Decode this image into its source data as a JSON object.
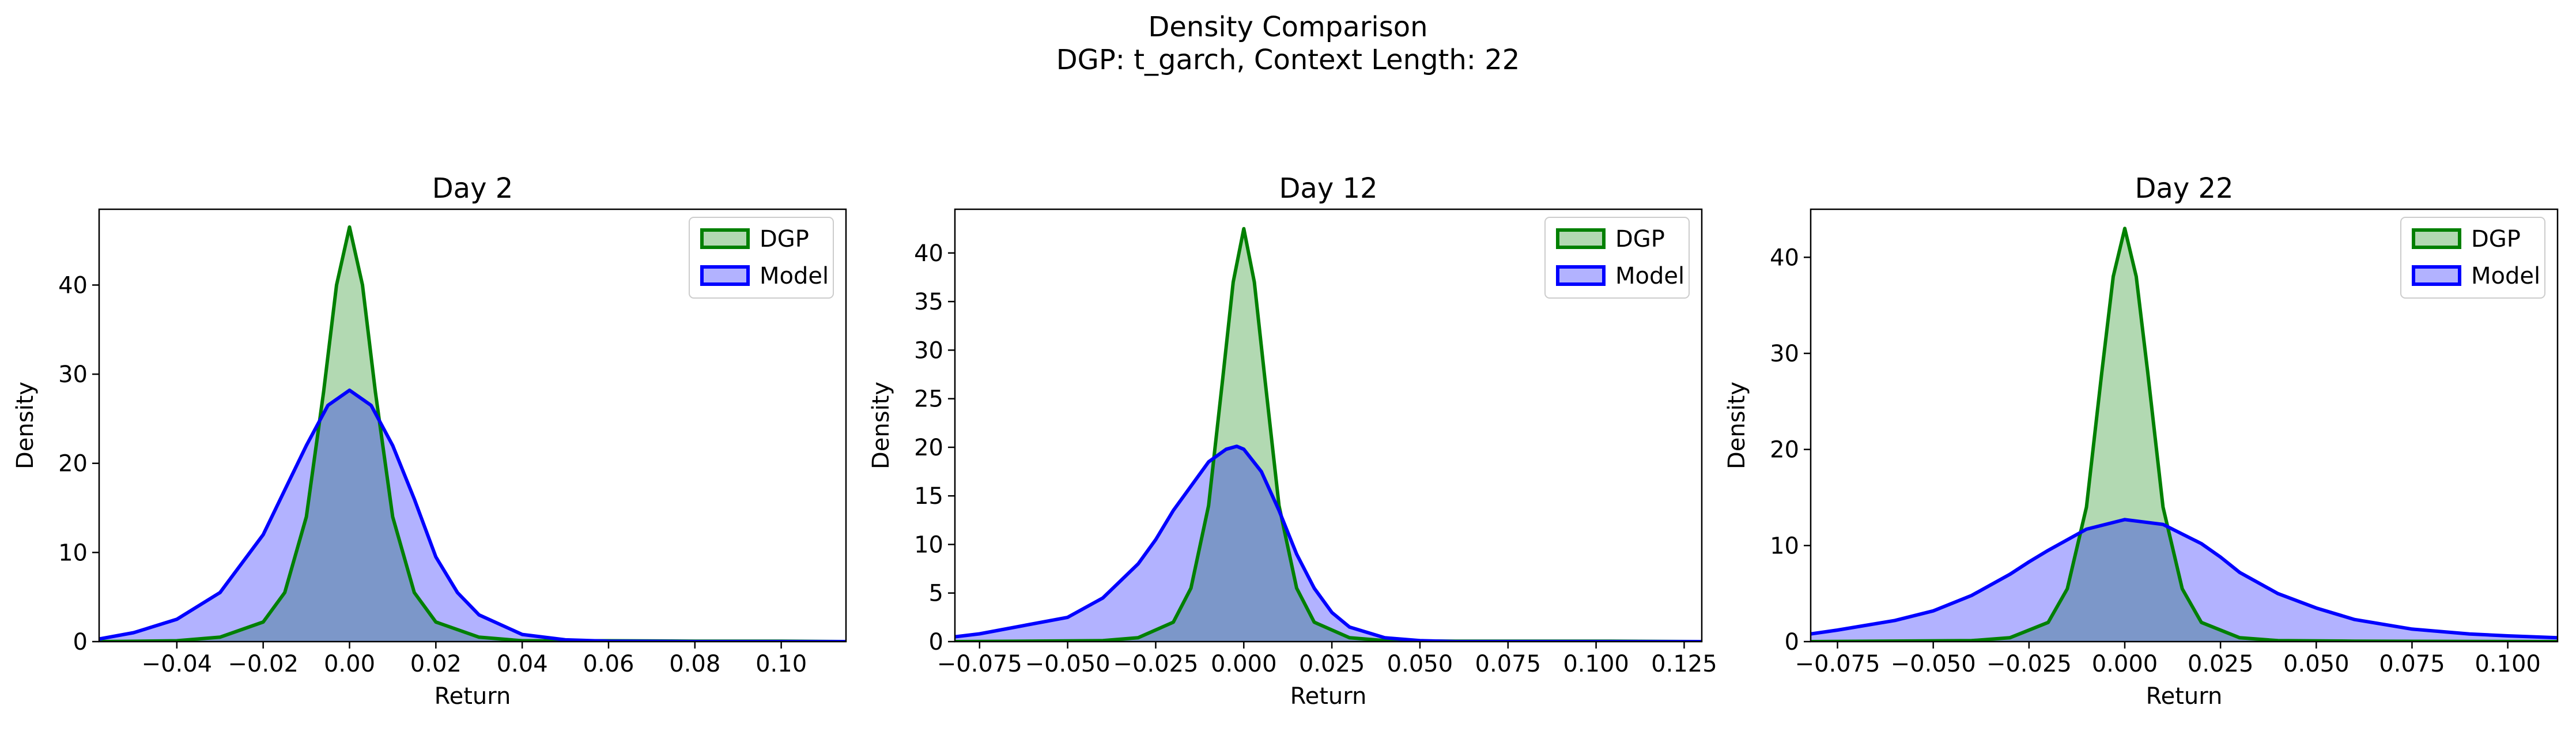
{
  "figure": {
    "title": "Density Comparison",
    "subtitle": "DGP: t_garch, Context Length: 22"
  },
  "colors": {
    "dgp_line": "#008000",
    "dgp_fill": "#b3dab3",
    "model_line": "#0000ff",
    "model_fill": "#b3b3ff",
    "overlap_fill": "#7f99c8"
  },
  "chart_data": [
    {
      "type": "area",
      "title": "Day 2",
      "xlabel": "Return",
      "ylabel": "Density",
      "xlim": [
        -0.058,
        0.115
      ],
      "ylim": [
        0,
        48.5
      ],
      "xticks": [
        -0.04,
        -0.02,
        0.0,
        0.02,
        0.04,
        0.06,
        0.08,
        0.1
      ],
      "xtick_labels": [
        "−0.04",
        "−0.02",
        "0.00",
        "0.02",
        "0.04",
        "0.06",
        "0.08",
        "0.10"
      ],
      "yticks": [
        0,
        10,
        20,
        30,
        40
      ],
      "ytick_labels": [
        "0",
        "10",
        "20",
        "30",
        "40"
      ],
      "legend": {
        "position": "upper right",
        "entries": [
          "DGP",
          "Model"
        ]
      },
      "grid": false,
      "series": [
        {
          "name": "DGP",
          "x": [
            -0.058,
            -0.04,
            -0.03,
            -0.02,
            -0.015,
            -0.01,
            -0.006,
            -0.003,
            0.0,
            0.003,
            0.006,
            0.01,
            0.015,
            0.02,
            0.03,
            0.04,
            0.06,
            0.08,
            0.1,
            0.115
          ],
          "y": [
            0.0,
            0.1,
            0.5,
            2.2,
            5.5,
            14.0,
            28.0,
            40.0,
            46.5,
            40.0,
            28.0,
            14.0,
            5.5,
            2.2,
            0.5,
            0.1,
            0.1,
            0.05,
            0.05,
            0.0
          ]
        },
        {
          "name": "Model",
          "x": [
            -0.058,
            -0.05,
            -0.04,
            -0.03,
            -0.02,
            -0.015,
            -0.01,
            -0.005,
            0.0,
            0.005,
            0.01,
            0.015,
            0.02,
            0.025,
            0.03,
            0.04,
            0.05,
            0.06,
            0.08,
            0.1,
            0.115
          ],
          "y": [
            0.3,
            1.0,
            2.5,
            5.5,
            12.0,
            17.0,
            22.0,
            26.5,
            28.2,
            26.5,
            22.0,
            16.0,
            9.5,
            5.5,
            3.0,
            0.8,
            0.2,
            0.05,
            0.0,
            0.0,
            0.0
          ]
        }
      ]
    },
    {
      "type": "area",
      "title": "Day 12",
      "xlabel": "Return",
      "ylabel": "Density",
      "xlim": [
        -0.082,
        0.13
      ],
      "ylim": [
        0,
        44.5
      ],
      "xticks": [
        -0.075,
        -0.05,
        -0.025,
        0.0,
        0.025,
        0.05,
        0.075,
        0.1,
        0.125
      ],
      "xtick_labels": [
        "−0.075",
        "−0.050",
        "−0.025",
        "0.000",
        "0.025",
        "0.050",
        "0.075",
        "0.100",
        "0.125"
      ],
      "yticks": [
        0,
        5,
        10,
        15,
        20,
        25,
        30,
        35,
        40
      ],
      "ytick_labels": [
        "0",
        "5",
        "10",
        "15",
        "20",
        "25",
        "30",
        "35",
        "40"
      ],
      "legend": {
        "position": "upper right",
        "entries": [
          "DGP",
          "Model"
        ]
      },
      "grid": false,
      "series": [
        {
          "name": "DGP",
          "x": [
            -0.082,
            -0.04,
            -0.03,
            -0.02,
            -0.015,
            -0.01,
            -0.006,
            -0.003,
            0.0,
            0.003,
            0.006,
            0.01,
            0.015,
            0.02,
            0.03,
            0.04,
            0.06,
            0.1,
            0.13
          ],
          "y": [
            0.0,
            0.1,
            0.4,
            2.0,
            5.5,
            14.0,
            27.0,
            37.0,
            42.5,
            37.0,
            27.0,
            14.0,
            5.5,
            2.0,
            0.4,
            0.1,
            0.05,
            0.05,
            0.0
          ]
        },
        {
          "name": "Model",
          "x": [
            -0.082,
            -0.075,
            -0.05,
            -0.04,
            -0.03,
            -0.025,
            -0.02,
            -0.01,
            -0.005,
            -0.002,
            0.0,
            0.005,
            0.01,
            0.015,
            0.02,
            0.025,
            0.03,
            0.04,
            0.05,
            0.06,
            0.08,
            0.1,
            0.13
          ],
          "y": [
            0.5,
            0.8,
            2.5,
            4.5,
            8.0,
            10.5,
            13.5,
            18.5,
            19.8,
            20.1,
            19.8,
            17.5,
            13.5,
            9.0,
            5.5,
            3.0,
            1.5,
            0.4,
            0.1,
            0.0,
            0.0,
            0.0,
            0.0
          ]
        }
      ]
    },
    {
      "type": "area",
      "title": "Day 22",
      "xlabel": "Return",
      "ylabel": "Density",
      "xlim": [
        -0.082,
        0.113
      ],
      "ylim": [
        0,
        45
      ],
      "xticks": [
        -0.075,
        -0.05,
        -0.025,
        0.0,
        0.025,
        0.05,
        0.075,
        0.1
      ],
      "xtick_labels": [
        "−0.075",
        "−0.050",
        "−0.025",
        "0.000",
        "0.025",
        "0.050",
        "0.075",
        "0.100"
      ],
      "yticks": [
        0,
        10,
        20,
        30,
        40
      ],
      "ytick_labels": [
        "0",
        "10",
        "20",
        "30",
        "40"
      ],
      "legend": {
        "position": "upper right",
        "entries": [
          "DGP",
          "Model"
        ]
      },
      "grid": false,
      "series": [
        {
          "name": "DGP",
          "x": [
            -0.082,
            -0.04,
            -0.03,
            -0.02,
            -0.015,
            -0.01,
            -0.006,
            -0.003,
            0.0,
            0.003,
            0.006,
            0.01,
            0.015,
            0.02,
            0.03,
            0.04,
            0.06,
            0.113
          ],
          "y": [
            0.0,
            0.1,
            0.4,
            2.0,
            5.5,
            14.0,
            28.0,
            38.0,
            43.0,
            38.0,
            28.0,
            14.0,
            5.5,
            2.0,
            0.4,
            0.1,
            0.05,
            0.0
          ]
        },
        {
          "name": "Model",
          "x": [
            -0.082,
            -0.075,
            -0.06,
            -0.05,
            -0.04,
            -0.03,
            -0.025,
            -0.02,
            -0.01,
            0.0,
            0.01,
            0.02,
            0.025,
            0.03,
            0.04,
            0.05,
            0.06,
            0.075,
            0.09,
            0.1,
            0.113
          ],
          "y": [
            0.8,
            1.2,
            2.2,
            3.2,
            4.8,
            7.0,
            8.3,
            9.5,
            11.7,
            12.7,
            12.2,
            10.2,
            8.8,
            7.2,
            5.0,
            3.5,
            2.3,
            1.3,
            0.8,
            0.6,
            0.4
          ]
        }
      ]
    }
  ]
}
